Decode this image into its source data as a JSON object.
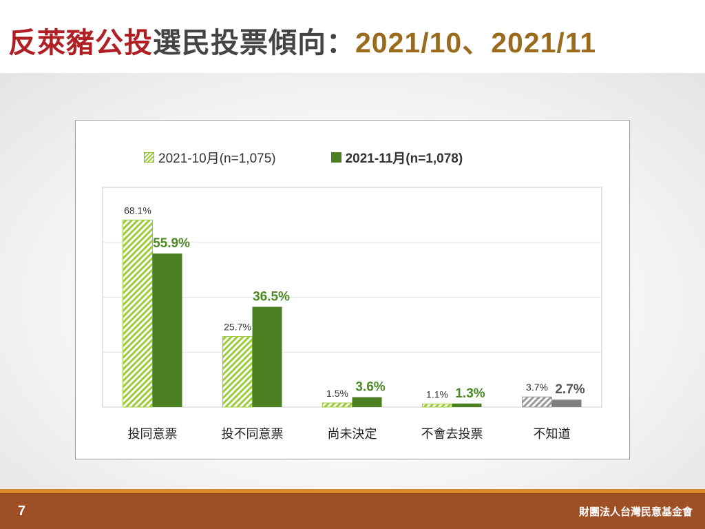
{
  "header": {
    "title_red": "反萊豬公投",
    "title_gray": "選民投票傾向：",
    "title_gold": "2021/10、2021/11"
  },
  "colors": {
    "title_red": "#b01f24",
    "title_gold": "#9a6a1d",
    "oct_series": "#9ccc3c",
    "nov_series": "#4a7f22",
    "dont_know_oct": "#9a9a9a",
    "dont_know_nov": "#808080",
    "footer_bar": "#9e4f26",
    "footer_stripe": "#d98b2a"
  },
  "chart_data": {
    "type": "bar",
    "categories": [
      "投同意票",
      "投不同意票",
      "尚未決定",
      "不會去投票",
      "不知道"
    ],
    "series": [
      {
        "name": "2021-10月(n=1,075)",
        "values": [
          68.1,
          25.7,
          1.5,
          1.1,
          3.7
        ],
        "labels": [
          "68.1%",
          "25.7%",
          "1.5%",
          "1.1%",
          "3.7%"
        ],
        "style": "hatched"
      },
      {
        "name": "2021-11月(n=1,078)",
        "values": [
          55.9,
          36.5,
          3.6,
          1.3,
          2.7
        ],
        "labels": [
          "55.9%",
          "36.5%",
          "3.6%",
          "1.3%",
          "2.7%"
        ],
        "style": "solid"
      }
    ],
    "ylim": [
      0,
      80
    ],
    "grid": true,
    "legend_position": "top",
    "title": "",
    "xlabel": "",
    "ylabel": ""
  },
  "footer": {
    "page_number": "7",
    "organization": "財團法人台灣民意基金會"
  }
}
